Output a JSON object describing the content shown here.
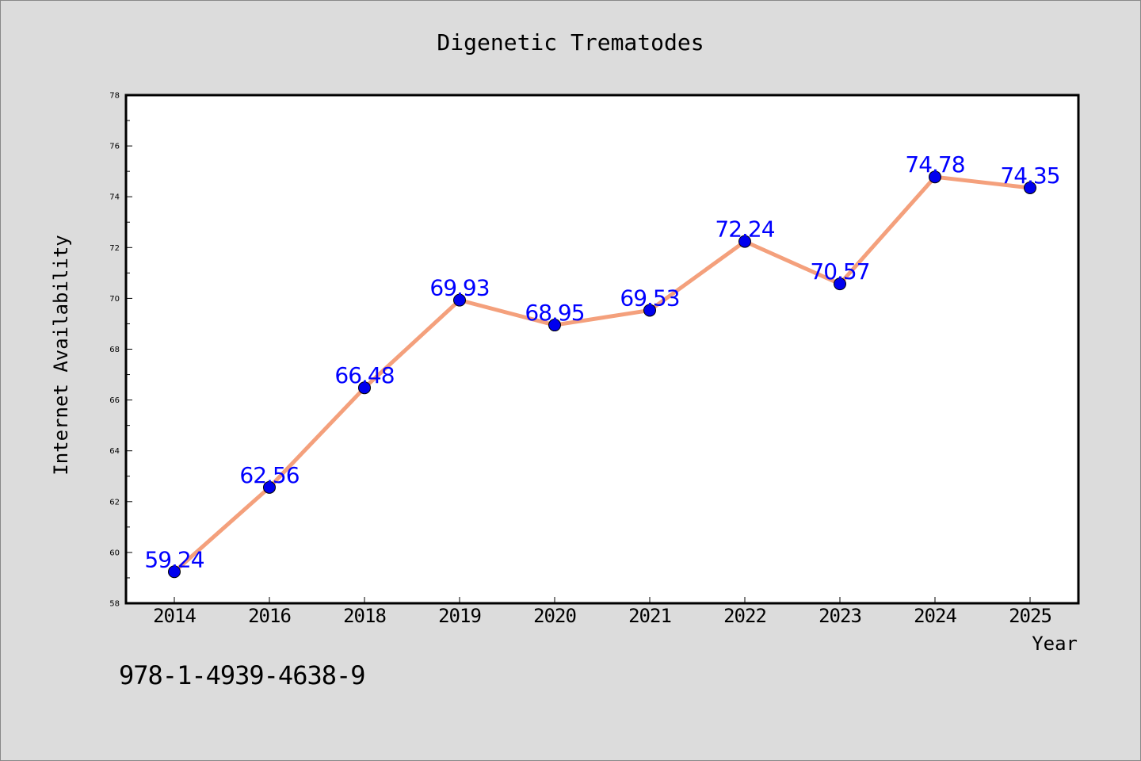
{
  "chart_data": {
    "type": "line",
    "title": "Digenetic Trematodes",
    "xlabel": "Year",
    "ylabel": "Internet Availability",
    "categories": [
      "2014",
      "2016",
      "2018",
      "2019",
      "2020",
      "2021",
      "2022",
      "2023",
      "2024",
      "2025"
    ],
    "series": [
      {
        "values": [
          59.24,
          62.56,
          66.48,
          69.93,
          68.95,
          69.53,
          72.24,
          70.57,
          74.78,
          74.35
        ]
      }
    ],
    "data_labels": [
      "59.24",
      "62.56",
      "66.48",
      "69.93",
      "68.95",
      "69.53",
      "72.24",
      "70.57",
      "74.78",
      "74.35"
    ],
    "ylim": [
      58,
      78
    ],
    "yticks": [
      58,
      60,
      62,
      64,
      66,
      68,
      70,
      72,
      74,
      76,
      78
    ],
    "grid": false,
    "colors": {
      "line": "#f4a07c",
      "marker": "#0000ee",
      "label": "#0000ff",
      "background": "#dcdcdc",
      "plot_bg": "#ffffff"
    }
  },
  "footer": {
    "code": "978-1-4939-4638-9"
  }
}
